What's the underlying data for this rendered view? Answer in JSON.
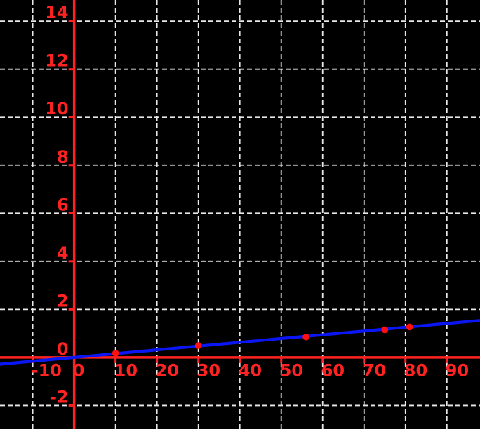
{
  "chart_data": {
    "type": "scatter",
    "title": "",
    "xlabel": "",
    "ylabel": "",
    "x_ticks": [
      -10,
      0,
      10,
      20,
      30,
      40,
      50,
      60,
      70,
      80,
      90
    ],
    "y_ticks": [
      -2,
      0,
      2,
      4,
      6,
      8,
      10,
      12,
      14
    ],
    "x_tick_labels": [
      "-10",
      "0",
      "10",
      "20",
      "30",
      "40",
      "50",
      "60",
      "70",
      "80",
      "90"
    ],
    "y_tick_labels": [
      "-2",
      "0",
      "2",
      "4",
      "6",
      "8",
      "10",
      "12",
      "14"
    ],
    "xlim": [
      -17.9,
      98.0
    ],
    "ylim": [
      -2.98,
      14.88
    ],
    "grid": true,
    "grid_style": "dashed",
    "legend_position": "none",
    "points": [
      {
        "x": 10,
        "y": 0.17
      },
      {
        "x": 30,
        "y": 0.49
      },
      {
        "x": 56,
        "y": 0.85
      },
      {
        "x": 75,
        "y": 1.15
      },
      {
        "x": 81,
        "y": 1.27
      }
    ],
    "line": {
      "slope": 0.0157,
      "intercept": 0.0
    },
    "colors": {
      "background": "#000000",
      "axis": "#ff2222",
      "tick_label": "#ff2222",
      "grid": "#e8e8e8",
      "fit_line": "#0b16f4",
      "point": "#ff1010"
    },
    "style": {
      "axis_width": 3.5,
      "grid_width": 1.8,
      "grid_dash": "7 4",
      "line_width": 4.2,
      "point_radius": 4.8,
      "tick_len": 8,
      "tick_width": 3,
      "font_size": 24
    }
  }
}
